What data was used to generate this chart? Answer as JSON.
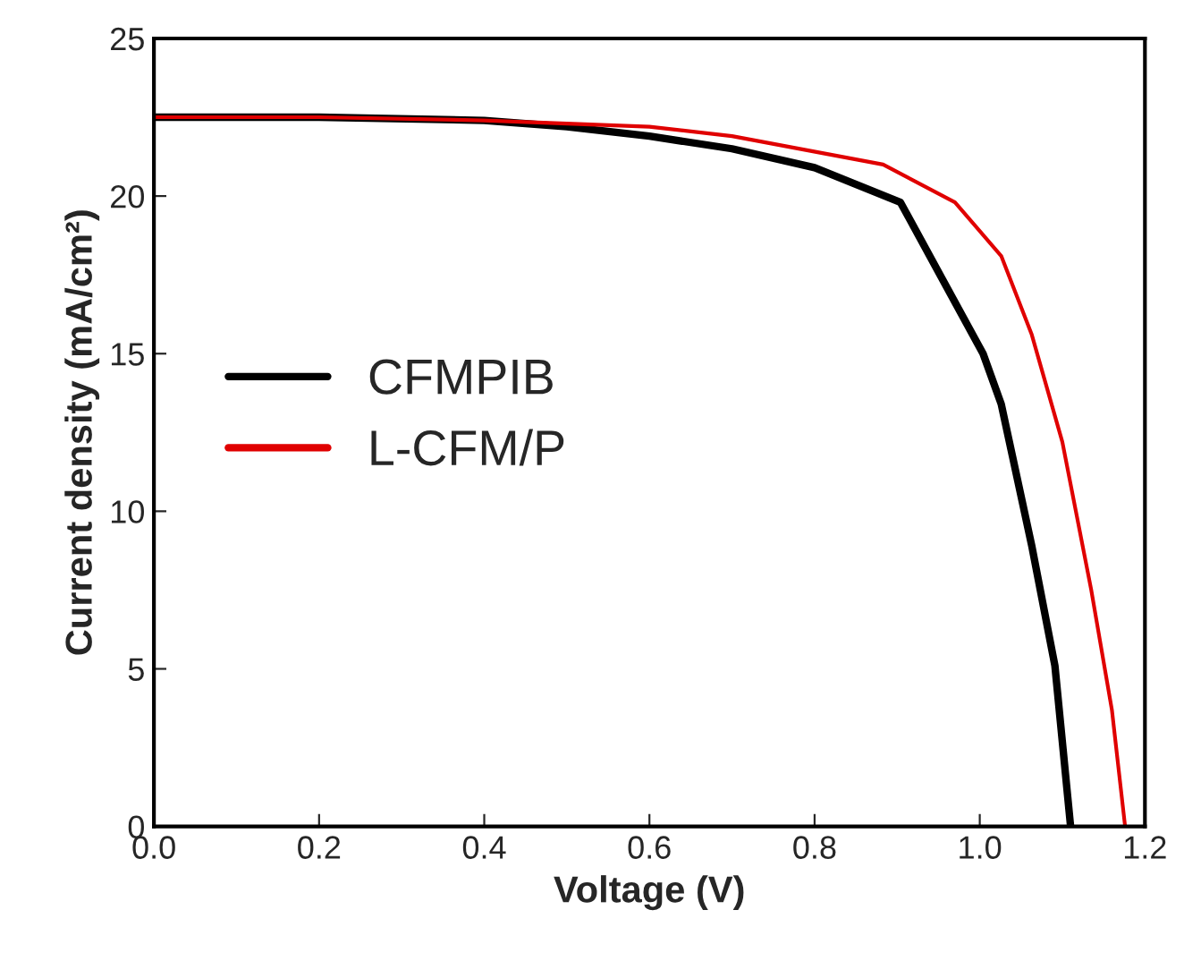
{
  "chart_data": {
    "type": "line",
    "xlabel": "Voltage (V)",
    "ylabel": "Current density (mA/cm²)",
    "xlim": [
      0,
      1.2
    ],
    "ylim": [
      0,
      25
    ],
    "xticks": [
      {
        "value": 0,
        "label": "0.0"
      },
      0.2,
      0.4,
      0.6,
      0.8,
      {
        "value": 1,
        "label": "1.0"
      },
      {
        "value": 1.2,
        "label": "1.2"
      }
    ],
    "yticks": [
      0,
      5,
      10,
      15,
      20,
      25
    ],
    "legend": "left",
    "grid": false,
    "series": [
      {
        "name": "CFMPIB",
        "color": "#000000",
        "x": [
          0,
          0.2,
          0.4,
          0.5,
          0.6,
          0.7,
          0.8,
          0.904,
          0.954,
          1.004,
          1.026,
          1.063,
          1.091,
          1.11
        ],
        "values": [
          22.5,
          22.5,
          22.4,
          22.2,
          21.9,
          21.5,
          20.9,
          19.8,
          17.4,
          15.0,
          13.4,
          8.9,
          5.1,
          0
        ]
      },
      {
        "name": "L-CFM/P",
        "color": "#e00000",
        "x": [
          0,
          0.2,
          0.4,
          0.6,
          0.7,
          0.883,
          0.97,
          1.026,
          1.063,
          1.1,
          1.135,
          1.16,
          1.176
        ],
        "values": [
          22.5,
          22.5,
          22.4,
          22.2,
          21.9,
          21.0,
          19.8,
          18.1,
          15.6,
          12.2,
          7.5,
          3.7,
          0
        ]
      }
    ]
  }
}
